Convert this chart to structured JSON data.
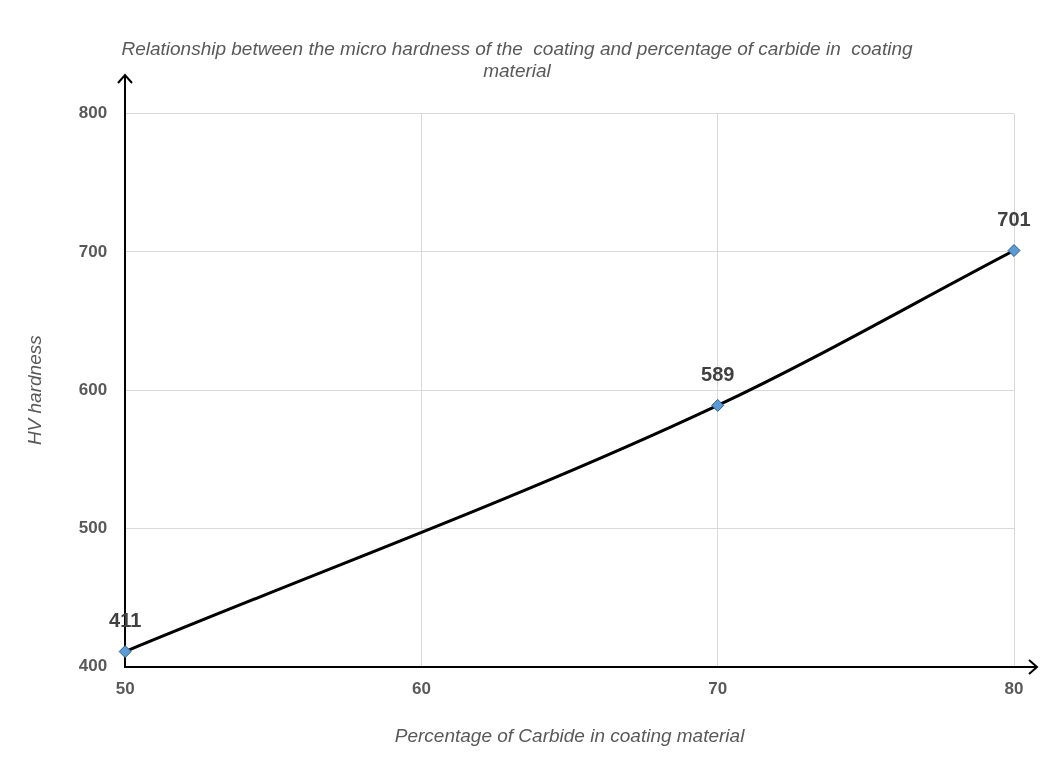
{
  "chart_data": {
    "type": "line",
    "title": "Relationship between the micro hardness of the  coating and percentage of carbide in  coating material",
    "xlabel": "Percentage of Carbide in coating material",
    "ylabel": "HV hardness",
    "x": [
      50,
      70,
      80
    ],
    "series": [
      {
        "color": "#000000",
        "values": [
          411,
          589,
          701
        ]
      }
    ],
    "xlim": [
      50,
      80
    ],
    "xticks": [
      50,
      60,
      70,
      80
    ],
    "ylim": [
      400,
      800
    ],
    "yticks": [
      400,
      500,
      600,
      700,
      800
    ],
    "grid": true,
    "legend": false,
    "marker": "diamond",
    "line_style": "solid",
    "data_labels": true
  }
}
